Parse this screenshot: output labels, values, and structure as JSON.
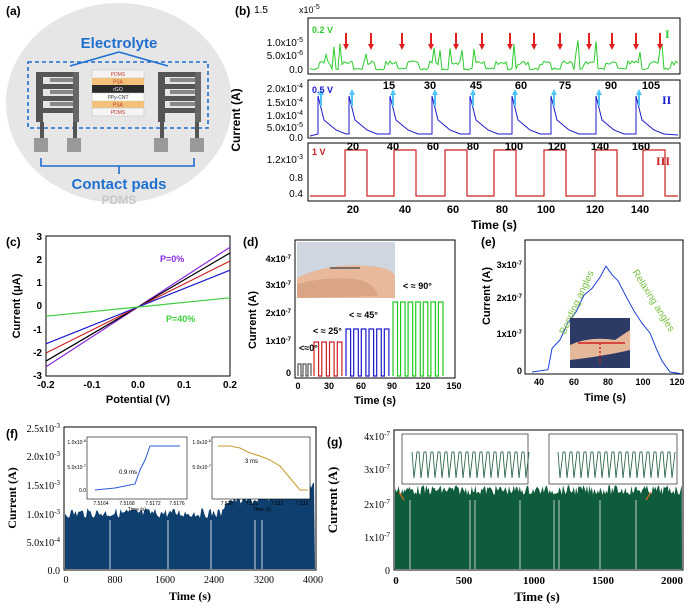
{
  "panels": {
    "a": {
      "letter": "(a)",
      "electrolyte": "Electrolyte",
      "contact_pads": "Contact pads",
      "substrate": "PDMS",
      "layers": [
        "PDMS",
        "PSA",
        "rGO",
        "PPy-CNT",
        "PSA",
        "PDMS"
      ],
      "colors": {
        "accent": "#1f6fd0",
        "disc": "#e6e6e6"
      }
    },
    "b": {
      "letter": "(b)",
      "ylabel": "Current (A)",
      "xlabel": "Time (s)",
      "rows": [
        {
          "voltage": "0.2 V",
          "roman": "I",
          "color": "#2ecc2e",
          "exp": "x10",
          "exp_sup": "-5",
          "yticks": [
            "1.5",
            "1.0x10",
            "5.0x10",
            "0.0"
          ],
          "yticks_sup": [
            "",
            "-5",
            "-6",
            ""
          ],
          "xticks": [
            "15",
            "30",
            "45",
            "60",
            "75",
            "90",
            "105"
          ]
        },
        {
          "voltage": "0.5 V",
          "roman": "II",
          "color": "#1a1acc",
          "yticks": [
            "2.0x10",
            "1.5x10",
            "1.0x10",
            "5.0x10",
            "0.0"
          ],
          "yticks_sup": [
            "-4",
            "-4",
            "-4",
            "-5",
            ""
          ],
          "xticks": [
            "20",
            "40",
            "60",
            "80",
            "100",
            "120",
            "140",
            "160"
          ]
        },
        {
          "voltage": "1 V",
          "roman": "III",
          "color": "#cc2020",
          "yticks": [
            "1.2x10",
            "0.8",
            "0.4"
          ],
          "yticks_sup": [
            "-3",
            "",
            ""
          ],
          "xticks": [
            "20",
            "40",
            "60",
            "80",
            "100",
            "120",
            "140"
          ]
        }
      ]
    },
    "c": {
      "letter": "(c)",
      "ylabel": "Current (μA)",
      "xlabel": "Potential (V)",
      "label_p0": "P=0%",
      "label_p40": "P=40%",
      "xticks": [
        "-0.2",
        "-0.1",
        "0.0",
        "0.1",
        "0.2"
      ],
      "yticks": [
        "3",
        "2",
        "1",
        "0",
        "-1",
        "-2",
        "-3"
      ]
    },
    "d": {
      "letter": "(d)",
      "ylabel": "Current (A)",
      "xlabel": "Time (s)",
      "yticks": [
        "4x10",
        "3x10",
        "2x10",
        "1x10",
        "0"
      ],
      "yticks_sup": [
        "-7",
        "-7",
        "-7",
        "-7",
        ""
      ],
      "xticks": [
        "0",
        "30",
        "60",
        "90",
        "120",
        "150"
      ],
      "angles": [
        "<≈0°",
        "< ≈ 25°",
        "< ≈ 45°",
        "< ≈ 90°"
      ]
    },
    "e": {
      "letter": "(e)",
      "ylabel": "Current (A)",
      "xlabel": "Time (s)",
      "yticks": [
        "3x10",
        "2x10",
        "1x10",
        "0"
      ],
      "yticks_sup": [
        "-7",
        "-7",
        "-7",
        ""
      ],
      "xticks": [
        "40",
        "60",
        "80",
        "100",
        "120"
      ],
      "bending": "Bending angles",
      "relaxing": "Relaxing angles"
    },
    "f": {
      "letter": "(f)",
      "ylabel": "Current (A)",
      "xlabel": "Time (s)",
      "yticks": [
        "2.5x10",
        "2.0x10",
        "1.5x10",
        "1.0x10",
        "5.0x10",
        "0.0"
      ],
      "yticks_sup": [
        "-3",
        "-3",
        "-3",
        "-3",
        "-4",
        ""
      ],
      "xticks": [
        "0",
        "800",
        "1600",
        "2400",
        "3200",
        "4000"
      ],
      "inset1": {
        "annotation": "0.9 ms",
        "xlabel": "Time (s)",
        "ytop": "1.0x10",
        "ytop_sup": "-6",
        "ymid": "5.0x10",
        "ymid_sup": "-7",
        "ybot": "0.0",
        "xticks": [
          "7.5164",
          "7.5168",
          "7.5172",
          "7.5176"
        ]
      },
      "inset2": {
        "annotation": "3 ms",
        "xlabel": "Time (s)",
        "ytop": "1.0x10",
        "ytop_sup": "-6",
        "ymid": "5.0x10",
        "ymid_sup": "-7",
        "xticks": [
          "7.530",
          "7.531",
          "7.532",
          "7.533"
        ]
      }
    },
    "g": {
      "letter": "(g)",
      "ylabel": "Current (A)",
      "xlabel": "Time (s)",
      "yticks": [
        "4x10",
        "3x10",
        "2x10",
        "1x10",
        "0"
      ],
      "yticks_sup": [
        "-7",
        "-7",
        "-7",
        "-7",
        ""
      ],
      "xticks": [
        "0",
        "500",
        "1000",
        "1500",
        "2000"
      ],
      "color": "#0f5c3c"
    }
  }
}
